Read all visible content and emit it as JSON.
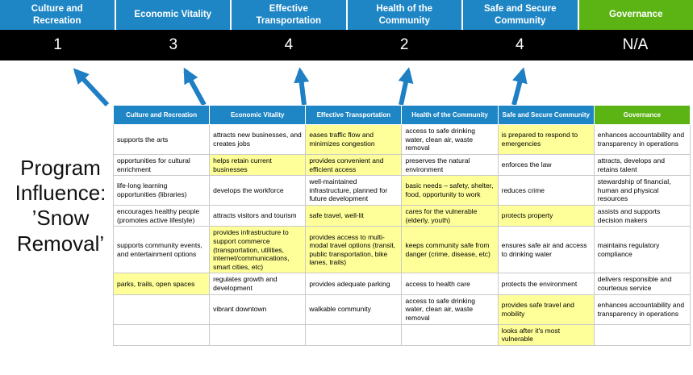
{
  "title": {
    "program_label": "Program Influence: ’Snow Removal’"
  },
  "scoreboard": {
    "columns": [
      {
        "label": "Culture and Recreation",
        "score": "1",
        "color": "#1f86c5"
      },
      {
        "label": "Economic Vitality",
        "score": "3",
        "color": "#1f86c5"
      },
      {
        "label": "Effective Transportation",
        "score": "4",
        "color": "#1f86c5"
      },
      {
        "label": "Health of the Community",
        "score": "2",
        "color": "#1f86c5"
      },
      {
        "label": "Safe and Secure Community",
        "score": "4",
        "color": "#1f86c5"
      },
      {
        "label": "Governance",
        "score": "N/A",
        "color": "#5cb414"
      }
    ]
  },
  "matrix": {
    "rows": [
      [
        {
          "text": "supports the arts",
          "highlight": false
        },
        {
          "text": "attracts new businesses, and creates jobs",
          "highlight": false
        },
        {
          "text": "eases traffic flow and minimizes congestion",
          "highlight": true
        },
        {
          "text": "access to safe drinking water, clean air, waste removal",
          "highlight": false
        },
        {
          "text": "is prepared to respond to emergencies",
          "highlight": true
        },
        {
          "text": "enhances accountability and transparency in operations",
          "highlight": false
        }
      ],
      [
        {
          "text": "opportunities for cultural enrichment",
          "highlight": false
        },
        {
          "text": "helps retain current businesses",
          "highlight": true
        },
        {
          "text": "provides convenient and efficient access",
          "highlight": true
        },
        {
          "text": "preserves the natural environment",
          "highlight": false
        },
        {
          "text": "enforces the law",
          "highlight": false
        },
        {
          "text": "attracts, develops and retains talent",
          "highlight": false
        }
      ],
      [
        {
          "text": "life-long learning opportunities (libraries)",
          "highlight": false
        },
        {
          "text": "develops the workforce",
          "highlight": false
        },
        {
          "text": "well-maintained infrastructure, planned for future development",
          "highlight": false
        },
        {
          "text": "basic needs – safety, shelter, food, opportunity to work",
          "highlight": true
        },
        {
          "text": "reduces crime",
          "highlight": false
        },
        {
          "text": "stewardship of financial, human and physical resources",
          "highlight": false
        }
      ],
      [
        {
          "text": "encourages healthy people (promotes active lifestyle)",
          "highlight": false
        },
        {
          "text": "attracts visitors and tourism",
          "highlight": false
        },
        {
          "text": "safe travel, well-lit",
          "highlight": true
        },
        {
          "text": "cares for the vulnerable (elderly, youth)",
          "highlight": true
        },
        {
          "text": "protects property",
          "highlight": true
        },
        {
          "text": "assists and supports decision makers",
          "highlight": false
        }
      ],
      [
        {
          "text": "supports community events, and entertainment options",
          "highlight": false
        },
        {
          "text": "provides infrastructure to support commerce (transportation, utilities, internet/communications, smart cities, etc)",
          "highlight": true
        },
        {
          "text": "provides access to multi-modal travel options (transit, public transportation, bike lanes, trails)",
          "highlight": true
        },
        {
          "text": "keeps community safe from danger (crime, disease, etc)",
          "highlight": true
        },
        {
          "text": "ensures safe air and access to drinking water",
          "highlight": false
        },
        {
          "text": "maintains regulatory compliance",
          "highlight": false
        }
      ],
      [
        {
          "text": "parks, trails, open spaces",
          "highlight": true
        },
        {
          "text": "regulates growth and development",
          "highlight": false
        },
        {
          "text": "provides adequate parking",
          "highlight": false
        },
        {
          "text": "access to health care",
          "highlight": false
        },
        {
          "text": "protects the environment",
          "highlight": false
        },
        {
          "text": "delivers responsible and courteous service",
          "highlight": false
        }
      ],
      [
        {
          "text": "",
          "highlight": false
        },
        {
          "text": "vibrant downtown",
          "highlight": false
        },
        {
          "text": "walkable community",
          "highlight": false
        },
        {
          "text": "access to safe drinking water, clean air, waste removal",
          "highlight": false
        },
        {
          "text": "provides safe travel and mobility",
          "highlight": true
        },
        {
          "text": "enhances accountability and transparency in operations",
          "highlight": false
        }
      ],
      [
        {
          "text": "",
          "highlight": false
        },
        {
          "text": "",
          "highlight": false
        },
        {
          "text": "",
          "highlight": false
        },
        {
          "text": "",
          "highlight": false
        },
        {
          "text": "looks after it's most vulnerable",
          "highlight": true
        },
        {
          "text": "",
          "highlight": false
        }
      ]
    ]
  },
  "colors": {
    "header_blue": "#1f86c5",
    "header_green": "#5cb414",
    "score_bar_bg": "#000000",
    "arrow_blue": "#1f7fc4",
    "highlight_yellow": "#ffff99"
  }
}
